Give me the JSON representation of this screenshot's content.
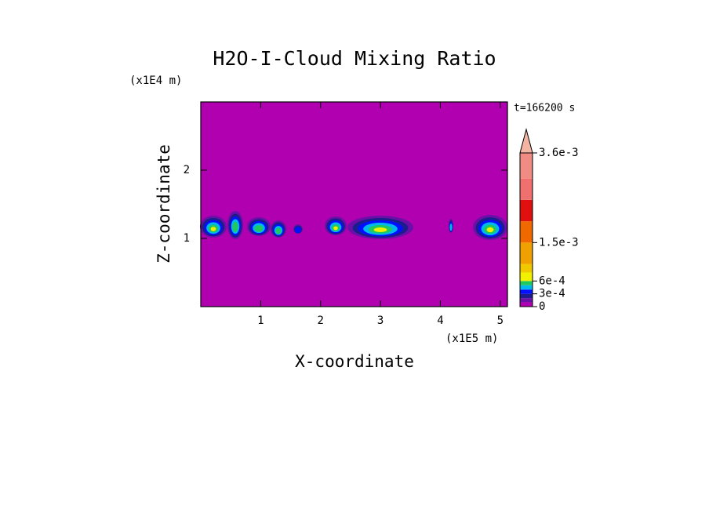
{
  "chart_data": {
    "type": "contour",
    "title": "H2O-I-Cloud Mixing Ratio",
    "x_label": "X-coordinate",
    "y_label": "Z-coordinate",
    "x_unit": "(x1E5 m)",
    "y_unit": "(x1E4 m)",
    "time_label": "t=166200 s",
    "xlim": [
      0,
      5.12
    ],
    "ylim": [
      0,
      3
    ],
    "xticks": [
      1,
      2,
      3,
      4,
      5
    ],
    "yticks": [
      1,
      2
    ],
    "colorbar": {
      "levels": [
        0,
        0.0001,
        0.0002,
        0.0003,
        0.0004,
        0.0005,
        0.0006,
        0.0008,
        0.001,
        0.0015,
        0.002,
        0.0025,
        0.003,
        0.0036
      ],
      "colors": [
        "#b000b0",
        "#6a10a8",
        "#1c1c8c",
        "#0010ff",
        "#00b8f0",
        "#20c860",
        "#f0f000",
        "#f0c800",
        "#f0a000",
        "#f06800",
        "#e01010",
        "#f07070",
        "#f08c84"
      ],
      "extend_color": "#f4b4a4",
      "ticks": [
        0,
        {
          "value": 0.0003,
          "label": "3e-4"
        },
        {
          "value": 0.0006,
          "label": "6e-4"
        },
        {
          "value": 0.0015,
          "label": "1.5e-3"
        },
        {
          "value": 0.0036,
          "label": "3.6e-3"
        }
      ]
    }
  }
}
